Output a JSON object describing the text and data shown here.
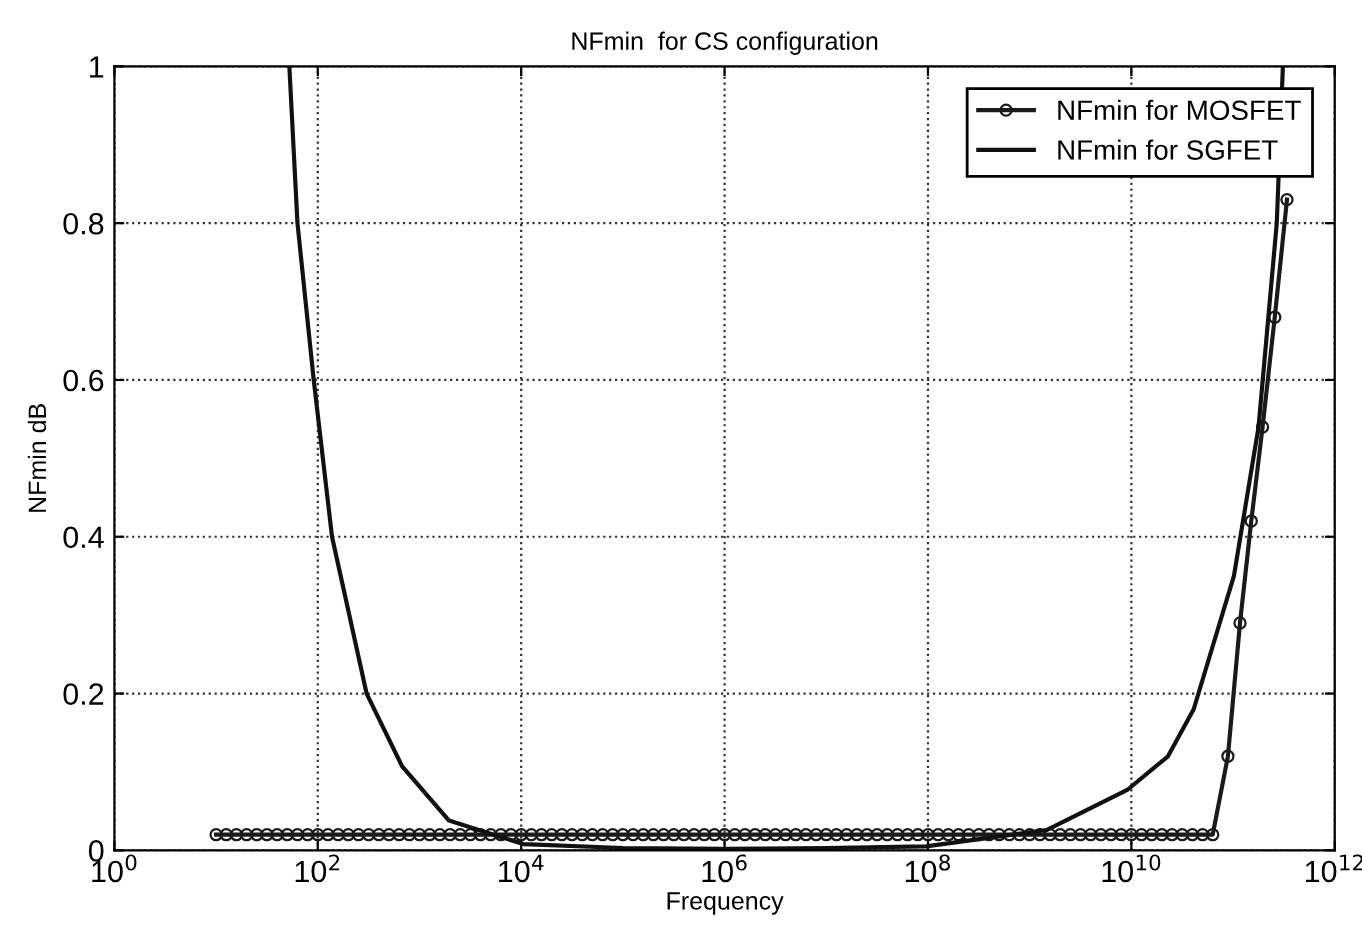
{
  "chart_data": {
    "type": "line",
    "title": "NFmin  for CS configuration",
    "xlabel": "Frequency",
    "ylabel": "NFmin dB",
    "log": "x",
    "xlim": [
      1,
      1000000000000.0
    ],
    "ylim": [
      0,
      1
    ],
    "xticks": [
      {
        "value": 1,
        "label": "10$^{0}$"
      },
      {
        "value": 100,
        "label": "10$^{2}$"
      },
      {
        "value": 10000,
        "label": "10$^{4}$"
      },
      {
        "value": 1000000,
        "label": "10$^{6}$"
      },
      {
        "value": 100000000,
        "label": "10$^{8}$"
      },
      {
        "value": 10000000000,
        "label": "10$^{10}$"
      },
      {
        "value": 1000000000000,
        "label": "10$^{12}$"
      }
    ],
    "yticks": [
      0,
      0.2,
      0.4,
      0.6,
      0.8,
      1
    ],
    "grid": true,
    "legend": "top right",
    "series": [
      {
        "name": "NFmin for MOSFET",
        "color": "#1a1a1a",
        "marker": "circle",
        "x": [
          10.0,
          12.59,
          15.85,
          19.95,
          25.12,
          31.62,
          39.81,
          50.12,
          63.1,
          79.43,
          100.0,
          125.9,
          158.5,
          199.5,
          251.2,
          316.2,
          398.1,
          501.2,
          631.0,
          794.3,
          1000.0,
          1259.0,
          1585.0,
          1995.0,
          2512.0,
          3162.0,
          3981.0,
          5012.0,
          6310.0,
          7943.0,
          10000.0,
          12590.0,
          15850.0,
          19950.0,
          25120.0,
          31620.0,
          39810.0,
          50120.0,
          63100.0,
          79430.0,
          100000.0,
          125900.0,
          158500.0,
          199500.0,
          251200.0,
          316200.0,
          398100.0,
          501200.0,
          631000.0,
          794300.0,
          1000000.0,
          1259000.0,
          1585000.0,
          1995000.0,
          2512000.0,
          3162000.0,
          3981000.0,
          5012000.0,
          6310000.0,
          7943000.0,
          10000000.0,
          12590000.0,
          15850000.0,
          19950000.0,
          25120000.0,
          31620000.0,
          39810000.0,
          50120000.0,
          63100000.0,
          79430000.0,
          100000000.0,
          125900000.0,
          158500000.0,
          199500000.0,
          251200000.0,
          316200000.0,
          398100000.0,
          501200000.0,
          631000000.0,
          794300000.0,
          1000000000.0,
          1259000000.0,
          1585000000.0,
          1995000000.0,
          2512000000.0,
          3162000000.0,
          3981000000.0,
          5012000000.0,
          6310000000.0,
          7943000000.0,
          10000000000.0,
          12590000000.0,
          15850000000.0,
          19950000000.0,
          25120000000.0,
          31620000000.0,
          39810000000.0,
          50120000000.0,
          63100000000.0,
          89000000000.0,
          117000000000.0,
          151000000000.0,
          195000000000.0,
          257000000000.0,
          339000000000.0
        ],
        "values": [
          0.02,
          0.02,
          0.02,
          0.02,
          0.02,
          0.02,
          0.02,
          0.02,
          0.02,
          0.02,
          0.02,
          0.02,
          0.02,
          0.02,
          0.02,
          0.02,
          0.02,
          0.02,
          0.02,
          0.02,
          0.02,
          0.02,
          0.02,
          0.02,
          0.02,
          0.02,
          0.02,
          0.02,
          0.02,
          0.02,
          0.02,
          0.02,
          0.02,
          0.02,
          0.02,
          0.02,
          0.02,
          0.02,
          0.02,
          0.02,
          0.02,
          0.02,
          0.02,
          0.02,
          0.02,
          0.02,
          0.02,
          0.02,
          0.02,
          0.02,
          0.02,
          0.02,
          0.02,
          0.02,
          0.02,
          0.02,
          0.02,
          0.02,
          0.02,
          0.02,
          0.02,
          0.02,
          0.02,
          0.02,
          0.02,
          0.02,
          0.02,
          0.02,
          0.02,
          0.02,
          0.02,
          0.02,
          0.02,
          0.02,
          0.02,
          0.02,
          0.02,
          0.02,
          0.02,
          0.02,
          0.02,
          0.02,
          0.02,
          0.02,
          0.02,
          0.02,
          0.02,
          0.02,
          0.02,
          0.02,
          0.02,
          0.02,
          0.02,
          0.02,
          0.02,
          0.02,
          0.02,
          0.02,
          0.02,
          0.12,
          0.29,
          0.42,
          0.54,
          0.68,
          0.83
        ]
      },
      {
        "name": "NFmin for SGFET",
        "color": "#111111",
        "marker": "none",
        "x": [
          52.5,
          63.1,
          91.2,
          138,
          302,
          676,
          1950,
          10500,
          100000.0,
          1000000.0,
          10000000.0,
          95500000.0,
          1480000000.0,
          9100000000.0,
          22900000000.0,
          41000000000.0,
          102000000000.0,
          178000000000.0,
          269000000000.0,
          309000000000.0
        ],
        "values": [
          1.0,
          0.8,
          0.6,
          0.4,
          0.2,
          0.107,
          0.038,
          0.008,
          0.003,
          0.002,
          0.003,
          0.005,
          0.026,
          0.077,
          0.12,
          0.18,
          0.35,
          0.54,
          0.8,
          1.0
        ]
      }
    ]
  }
}
